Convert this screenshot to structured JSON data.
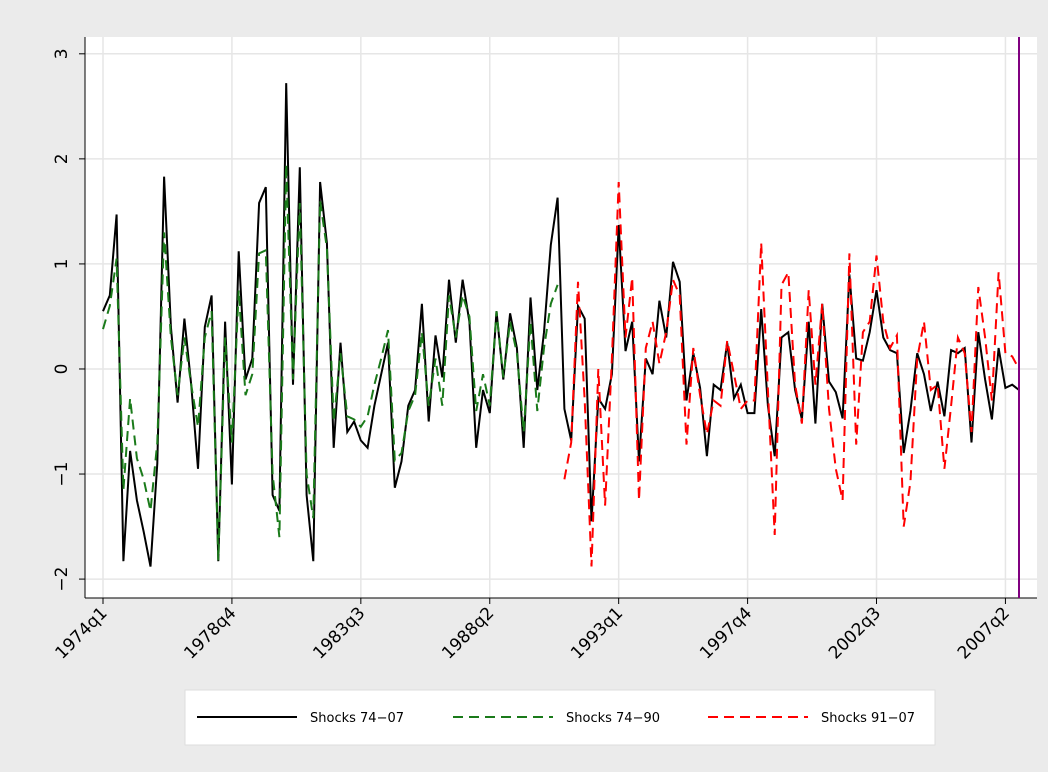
{
  "chart_data": {
    "type": "line",
    "categories": [
      "1974q1",
      null,
      null,
      null,
      null,
      null,
      null,
      null,
      null,
      null,
      null,
      null,
      null,
      null,
      null,
      null,
      null,
      null,
      null,
      "1978q4",
      null,
      null,
      null,
      null,
      null,
      null,
      null,
      null,
      null,
      null,
      null,
      null,
      null,
      null,
      null,
      null,
      null,
      null,
      "1983q3",
      null,
      null,
      null,
      null,
      null,
      null,
      null,
      null,
      null,
      null,
      null,
      null,
      null,
      null,
      null,
      null,
      null,
      null,
      "1988q2",
      null,
      null,
      null,
      null,
      null,
      null,
      null,
      null,
      null,
      null,
      null,
      null,
      null,
      null,
      null,
      null,
      null,
      null,
      "1993q1",
      null,
      null,
      null,
      null,
      null,
      null,
      null,
      null,
      null,
      null,
      null,
      null,
      null,
      null,
      null,
      null,
      null,
      null,
      "1997q4",
      null,
      null,
      null,
      null,
      null,
      null,
      null,
      null,
      null,
      null,
      null,
      null,
      null,
      null,
      null,
      null,
      null,
      null,
      "2002q3",
      null,
      null,
      null,
      null,
      null,
      null,
      null,
      null,
      null,
      null,
      null,
      null,
      null,
      null,
      null,
      null,
      null,
      null,
      "2007q2",
      null,
      null
    ],
    "series": [
      {
        "name": "Shocks 74−07",
        "color": "#000000",
        "dash": "none",
        "values": [
          0.55,
          0.7,
          1.47,
          -1.83,
          -0.78,
          -1.25,
          -1.55,
          -1.88,
          -0.9,
          1.83,
          0.4,
          -0.32,
          0.48,
          -0.15,
          -0.95,
          0.4,
          0.7,
          -1.83,
          0.45,
          -1.1,
          1.12,
          -0.1,
          0.1,
          1.58,
          1.73,
          -1.2,
          -1.35,
          2.72,
          -0.15,
          1.92,
          -1.2,
          -1.83,
          1.78,
          1.2,
          -0.75,
          0.25,
          -0.6,
          -0.5,
          -0.68,
          -0.75,
          -0.35,
          -0.05,
          0.25,
          -1.13,
          -0.88,
          -0.35,
          -0.2,
          0.62,
          -0.5,
          0.32,
          -0.08,
          0.85,
          0.25,
          0.85,
          0.45,
          -0.75,
          -0.2,
          -0.42,
          0.55,
          -0.1,
          0.53,
          0.2,
          -0.75,
          0.68,
          -0.2,
          0.35,
          1.18,
          1.63,
          -0.38,
          -0.68,
          0.6,
          0.48,
          -1.45,
          -0.28,
          -0.38,
          -0.05,
          1.37,
          0.17,
          0.45,
          -0.88,
          0.1,
          -0.05,
          0.65,
          0.3,
          1.02,
          0.83,
          -0.3,
          0.15,
          -0.18,
          -0.83,
          -0.15,
          -0.2,
          0.25,
          -0.28,
          -0.15,
          -0.42,
          -0.42,
          0.57,
          -0.35,
          -0.83,
          0.3,
          0.35,
          -0.2,
          -0.48,
          0.45,
          -0.52,
          0.62,
          -0.12,
          -0.22,
          -0.47,
          0.9,
          0.1,
          0.08,
          0.35,
          0.75,
          0.3,
          0.18,
          0.15,
          -0.8,
          -0.4,
          0.15,
          -0.05,
          -0.4,
          -0.12,
          -0.45,
          0.18,
          0.15,
          0.2,
          -0.7,
          0.35,
          -0.1,
          -0.48,
          0.2,
          -0.18,
          -0.15,
          -0.2
        ]
      },
      {
        "name": "Shocks 74−90",
        "color": "#1a7a1a",
        "dash": "dashed",
        "values": [
          0.38,
          0.6,
          1.05,
          -1.15,
          -0.28,
          -0.85,
          -1.05,
          -1.35,
          -0.7,
          1.3,
          0.3,
          -0.25,
          0.3,
          -0.15,
          -0.55,
          0.3,
          0.55,
          -1.82,
          0.3,
          -0.7,
          0.75,
          -0.25,
          -0.05,
          1.1,
          1.13,
          -1.0,
          -1.6,
          1.95,
          -0.1,
          1.58,
          -1.0,
          -1.42,
          1.6,
          1.15,
          -0.5,
          0.15,
          -0.45,
          -0.48,
          -0.55,
          -0.45,
          -0.15,
          0.1,
          0.37,
          -0.87,
          -0.8,
          -0.4,
          -0.25,
          0.35,
          -0.35,
          0.1,
          -0.35,
          0.7,
          0.3,
          0.7,
          0.5,
          -0.4,
          -0.05,
          -0.35,
          0.55,
          -0.08,
          0.45,
          0.15,
          -0.6,
          0.45,
          -0.4,
          0.2,
          0.62,
          0.8,
          null,
          null,
          null,
          null,
          null,
          null,
          null,
          null,
          null,
          null,
          null,
          null,
          null,
          null,
          null,
          null,
          null,
          null,
          null,
          null,
          null,
          null,
          null,
          null,
          null,
          null,
          null,
          null,
          null,
          null,
          null,
          null,
          null,
          null,
          null,
          null,
          null,
          null,
          null,
          null,
          null,
          null,
          null,
          null,
          null,
          null,
          null,
          null,
          null,
          null,
          null,
          null,
          null,
          null,
          null,
          null,
          null,
          null,
          null,
          null,
          null,
          null,
          null,
          null,
          null,
          null,
          null,
          null
        ]
      },
      {
        "name": "Shocks 91−07",
        "color": "#ff0000",
        "dash": "dashed",
        "values": [
          null,
          null,
          null,
          null,
          null,
          null,
          null,
          null,
          null,
          null,
          null,
          null,
          null,
          null,
          null,
          null,
          null,
          null,
          null,
          null,
          null,
          null,
          null,
          null,
          null,
          null,
          null,
          null,
          null,
          null,
          null,
          null,
          null,
          null,
          null,
          null,
          null,
          null,
          null,
          null,
          null,
          null,
          null,
          null,
          null,
          null,
          null,
          null,
          null,
          null,
          null,
          null,
          null,
          null,
          null,
          null,
          null,
          null,
          null,
          null,
          null,
          null,
          null,
          null,
          null,
          null,
          null,
          null,
          -1.05,
          -0.7,
          0.83,
          -0.3,
          -1.88,
          0.0,
          -1.3,
          0.1,
          1.78,
          0.3,
          0.87,
          -1.25,
          0.2,
          0.45,
          0.05,
          0.35,
          0.85,
          0.7,
          -0.72,
          0.2,
          -0.25,
          -0.62,
          -0.3,
          -0.35,
          0.27,
          -0.05,
          -0.38,
          -0.3,
          -0.3,
          1.2,
          -0.2,
          -1.58,
          0.8,
          0.92,
          -0.15,
          -0.52,
          0.75,
          -0.15,
          0.62,
          -0.38,
          -0.95,
          -1.25,
          1.1,
          -0.72,
          0.35,
          0.45,
          1.08,
          0.45,
          0.2,
          0.32,
          -1.5,
          -1.08,
          0.1,
          0.45,
          -0.2,
          -0.15,
          -0.95,
          -0.35,
          0.3,
          0.15,
          -0.6,
          0.78,
          0.3,
          -0.3,
          0.92,
          0.15,
          0.12,
          0.0
        ]
      }
    ],
    "ylim": [
      -2.18,
      3.16
    ],
    "yticks": [
      {
        "value": -2,
        "label": "−2"
      },
      {
        "value": -1,
        "label": "−1"
      },
      0,
      1,
      2,
      3
    ],
    "grid": true,
    "legend": "bottom",
    "reference_line_color": "#800080"
  }
}
